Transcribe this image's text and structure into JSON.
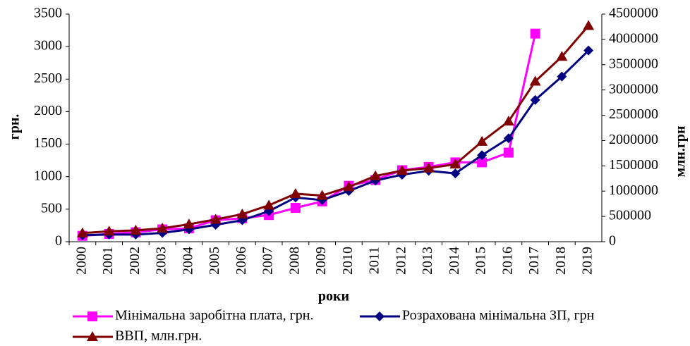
{
  "chart_data": {
    "type": "line",
    "categories": [
      "2000",
      "2001",
      "2002",
      "2003",
      "2004",
      "2005",
      "2006",
      "2007",
      "2008",
      "2009",
      "2010",
      "2011",
      "2012",
      "2013",
      "2014",
      "2015",
      "2016",
      "2017",
      "2018",
      "2019"
    ],
    "series": [
      {
        "name": "Мінімальна заробітна плата, грн.",
        "color": "#ff00ff",
        "marker": "square",
        "values": [
          90,
          120,
          145,
          190,
          205,
          330,
          360,
          410,
          520,
          620,
          860,
          950,
          1100,
          1150,
          1220,
          1220,
          1370,
          3200,
          null,
          null
        ]
      },
      {
        "name": "Розрахована мінімальна ЗП, грн",
        "color": "#000080",
        "marker": "diamond",
        "values": [
          100,
          110,
          110,
          135,
          190,
          260,
          330,
          470,
          680,
          640,
          780,
          940,
          1030,
          1090,
          1050,
          1330,
          1590,
          2180,
          2540,
          2940
        ]
      },
      {
        "name": "ВВП, млн.грн.",
        "color": "#800000",
        "marker": "triangle",
        "axis": "y2",
        "values": [
          170000,
          205000,
          225000,
          265000,
          345000,
          441000,
          544000,
          720000,
          948000,
          913000,
          1083000,
          1300000,
          1405000,
          1455000,
          1530000,
          1980000,
          2380000,
          3170000,
          3660000,
          4270000
        ]
      }
    ],
    "xlabel": "роки",
    "ylabel": "грн.",
    "y2label": "млн.грн",
    "ylim": [
      0,
      3500
    ],
    "yticks": [
      0,
      500,
      1000,
      1500,
      2000,
      2500,
      3000,
      3500
    ],
    "y2lim": [
      0,
      4500000
    ],
    "y2ticks": [
      0,
      500000,
      1000000,
      1500000,
      2000000,
      2500000,
      3000000,
      3500000,
      4000000,
      4500000
    ],
    "legend": "bottom"
  }
}
